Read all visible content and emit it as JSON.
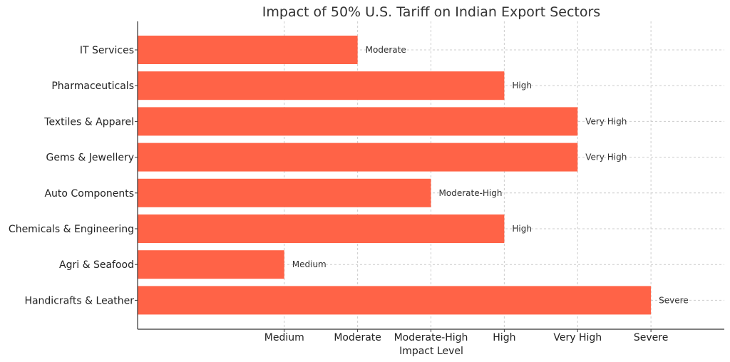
{
  "chart_data": {
    "type": "bar",
    "orientation": "horizontal",
    "title": "Impact of 50% U.S. Tariff on Indian Export Sectors",
    "xlabel": "Impact Level",
    "ylabel": "",
    "x_ticks": [
      {
        "value": 2,
        "label": "Medium"
      },
      {
        "value": 3,
        "label": "Moderate"
      },
      {
        "value": 4,
        "label": "Moderate-High"
      },
      {
        "value": 5,
        "label": "High"
      },
      {
        "value": 6,
        "label": "Very High"
      },
      {
        "value": 7,
        "label": "Severe"
      }
    ],
    "xlim": [
      0,
      8
    ],
    "categories": [
      "IT Services",
      "Pharmaceuticals",
      "Textiles & Apparel",
      "Gems & Jewellery",
      "Auto Components",
      "Chemicals & Engineering",
      "Agri & Seafood",
      "Handicrafts & Leather"
    ],
    "values": [
      3,
      5,
      6,
      6,
      4,
      5,
      2,
      7
    ],
    "data_labels": [
      "Moderate",
      "High",
      "Very High",
      "Very High",
      "Moderate-High",
      "High",
      "Medium",
      "Severe"
    ],
    "bar_color": "#ff6347",
    "grid": true
  }
}
